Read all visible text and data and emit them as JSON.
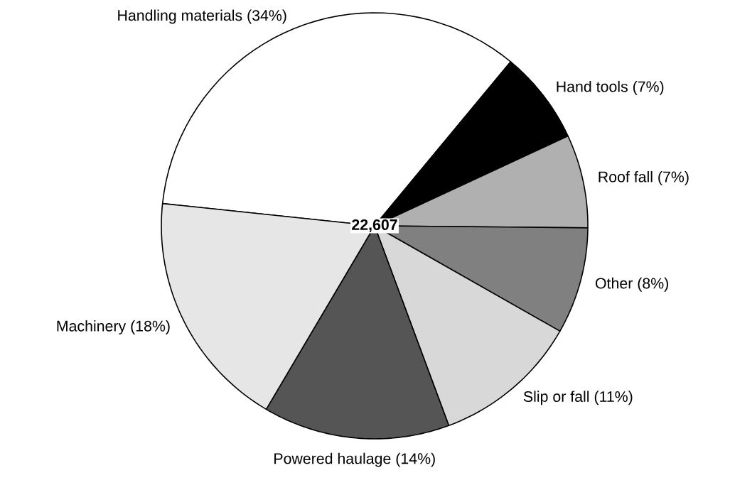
{
  "chart_data": {
    "type": "pie",
    "categories": [
      "Handling materials (34%)",
      "Hand tools (7%)",
      "Roof fall (7%)",
      "Other (8%)",
      "Slip or fall (11%)",
      "Powered haulage (14%)",
      "Machinery (18%)"
    ],
    "values": [
      34,
      7,
      7,
      8,
      11,
      14,
      18
    ],
    "colors": [
      "#ffffff",
      "#000000",
      "#b0b0b0",
      "#808080",
      "#d8d8d8",
      "#555555",
      "#e6e6e6"
    ],
    "annotations": [
      "**22,607**"
    ]
  }
}
